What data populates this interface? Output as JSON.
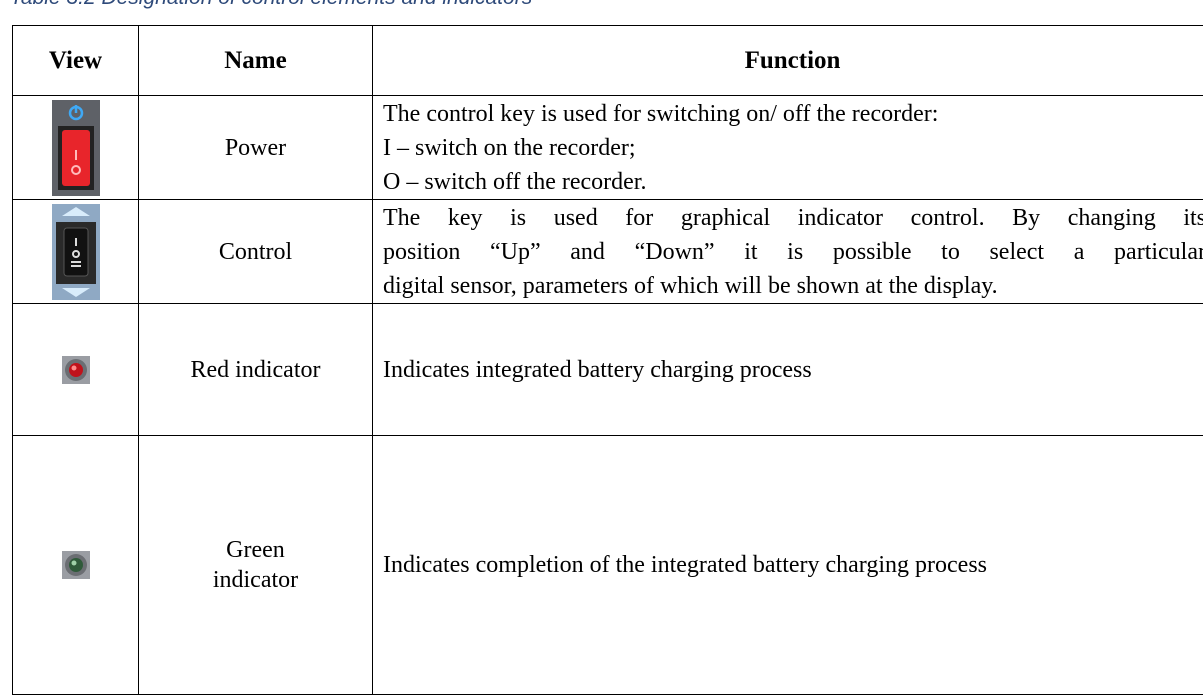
{
  "caption": "Table 3.2 Designation of control elements and indicators",
  "table": {
    "header": [
      "View",
      "Name",
      "Function"
    ],
    "rows": [
      {
        "name": "Power",
        "function": [
          "The control key is used for switching on/ off the recorder:",
          "I – switch on the recorder;",
          "O – switch off the recorder."
        ]
      },
      {
        "name": "Control",
        "function": [
          "The key is used for graphical indicator control. By changing its",
          "position “Up” and “Down” it is possible to select a particular",
          "digital sensor, parameters of which will be shown at the display."
        ]
      },
      {
        "name": "Red indicator",
        "function": [
          "Indicates integrated battery charging process"
        ]
      },
      {
        "name": [
          "Green",
          "indicator"
        ],
        "function": [
          "Indicates completion of the integrated battery charging process"
        ]
      }
    ]
  }
}
